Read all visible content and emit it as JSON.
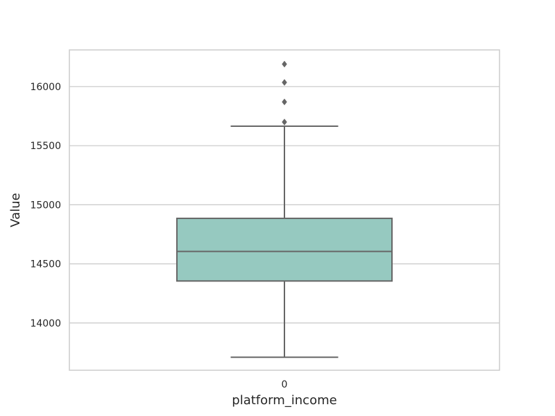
{
  "chart_data": {
    "type": "box",
    "xlabel": "platform_income",
    "ylabel": "Value",
    "categories": [
      "0"
    ],
    "ylim": [
      13600,
      16310
    ],
    "yticks": [
      14000,
      14500,
      15000,
      15500,
      16000
    ],
    "grid": "horizontal",
    "boxes": [
      {
        "category": "0",
        "whisker_low": 13710,
        "q1": 14355,
        "median": 14605,
        "q3": 14885,
        "whisker_high": 15665,
        "outliers": [
          15700,
          15870,
          16035,
          16190
        ]
      }
    ],
    "colors": {
      "box_fill": "#96c9c0",
      "box_line": "#666666",
      "grid": "#cccccc",
      "frame": "#cccccc"
    }
  }
}
